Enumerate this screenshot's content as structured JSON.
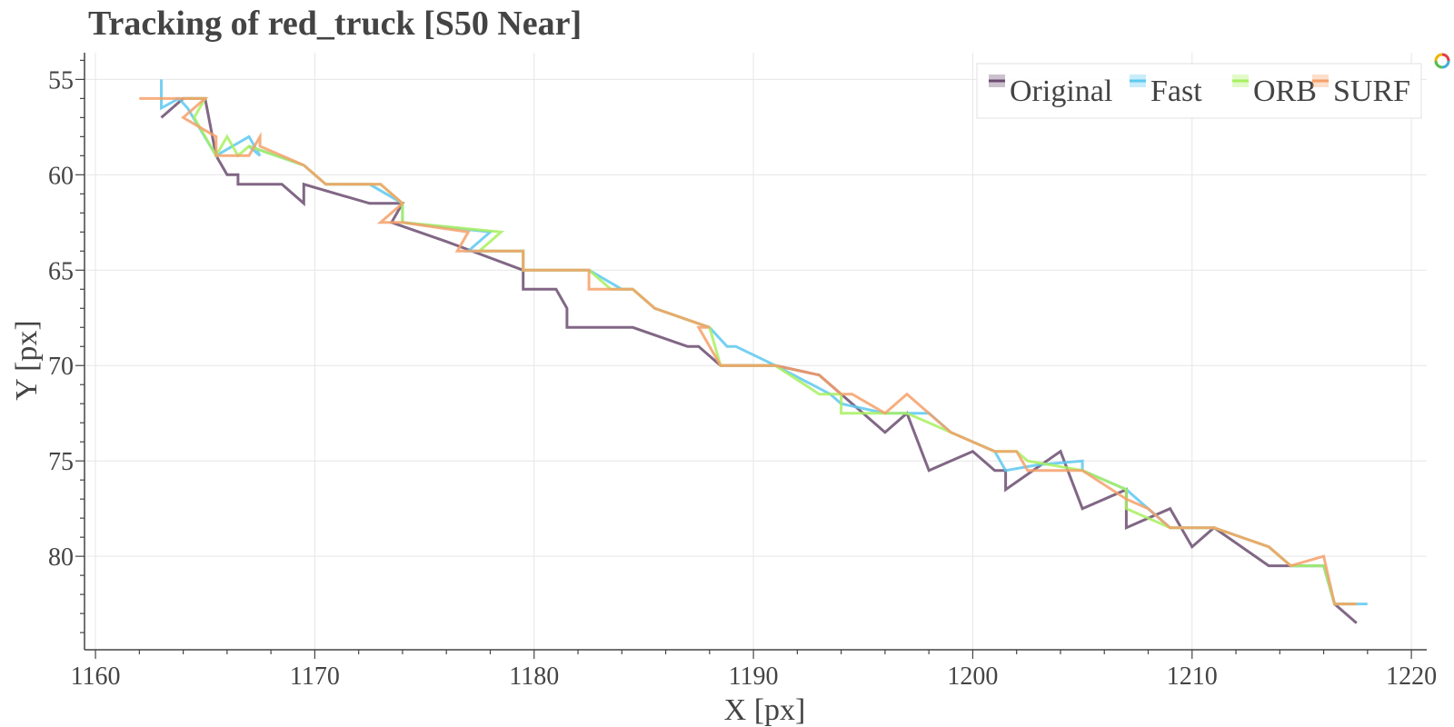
{
  "chart_data": {
    "type": "line",
    "title": "Tracking of red_truck [S50 Near]",
    "xlabel": "X [px]",
    "ylabel": "Y [px]",
    "xlim": [
      1159.5,
      1220.7
    ],
    "ylim": [
      84.9,
      53.6
    ],
    "y_inverted": true,
    "xticks": [
      1160,
      1170,
      1180,
      1190,
      1200,
      1210,
      1220
    ],
    "yticks": [
      55,
      60,
      65,
      70,
      75,
      80
    ],
    "grid": true,
    "legend_position": "top-right",
    "series": [
      {
        "name": "Original",
        "color": "#6b4c70",
        "points": [
          [
            1163,
            57
          ],
          [
            1164,
            56
          ],
          [
            1165,
            56
          ],
          [
            1165.5,
            59
          ],
          [
            1166,
            60
          ],
          [
            1166.5,
            60
          ],
          [
            1166.5,
            60.5
          ],
          [
            1168.5,
            60.5
          ],
          [
            1169.5,
            61.5
          ],
          [
            1169.5,
            60.5
          ],
          [
            1172.5,
            61.5
          ],
          [
            1174,
            61.5
          ],
          [
            1173.5,
            62.5
          ],
          [
            1176,
            63.5
          ],
          [
            1179.5,
            65
          ],
          [
            1179.5,
            66
          ],
          [
            1181,
            66
          ],
          [
            1181.5,
            67
          ],
          [
            1181.5,
            68
          ],
          [
            1184.5,
            68
          ],
          [
            1187,
            69
          ],
          [
            1187.5,
            69
          ],
          [
            1188.5,
            70
          ],
          [
            1191,
            70
          ],
          [
            1193,
            70.5
          ],
          [
            1194.5,
            72
          ],
          [
            1196,
            73.5
          ],
          [
            1197,
            72.5
          ],
          [
            1198,
            75.5
          ],
          [
            1200,
            74.5
          ],
          [
            1201,
            75.5
          ],
          [
            1201.5,
            75.5
          ],
          [
            1201.5,
            76.5
          ],
          [
            1204,
            74.5
          ],
          [
            1205,
            77.5
          ],
          [
            1207,
            76.5
          ],
          [
            1207,
            78.5
          ],
          [
            1209,
            77.5
          ],
          [
            1209.5,
            78.5
          ],
          [
            1210,
            79.5
          ],
          [
            1211,
            78.5
          ],
          [
            1213.5,
            80.5
          ],
          [
            1216,
            80.5
          ],
          [
            1216.5,
            82.5
          ],
          [
            1217.5,
            83.5
          ]
        ]
      },
      {
        "name": "Fast",
        "color": "#5ec8f0",
        "points": [
          [
            1163,
            55
          ],
          [
            1163,
            56.5
          ],
          [
            1163.8,
            56
          ],
          [
            1164.2,
            56.5
          ],
          [
            1165.5,
            59
          ],
          [
            1167,
            58
          ],
          [
            1167.5,
            59
          ],
          [
            1167,
            58.5
          ],
          [
            1169.5,
            59.5
          ],
          [
            1170.5,
            60.5
          ],
          [
            1172.5,
            60.5
          ],
          [
            1174,
            61.5
          ],
          [
            1174,
            62.5
          ],
          [
            1178,
            63
          ],
          [
            1177,
            64
          ],
          [
            1179.5,
            64
          ],
          [
            1179.5,
            65
          ],
          [
            1182.5,
            65
          ],
          [
            1184,
            66
          ],
          [
            1184.5,
            66
          ],
          [
            1185.5,
            67
          ],
          [
            1188,
            68
          ],
          [
            1188.8,
            69
          ],
          [
            1189.2,
            69
          ],
          [
            1191,
            70
          ],
          [
            1193.5,
            71.5
          ],
          [
            1194,
            72
          ],
          [
            1196,
            72.5
          ],
          [
            1198,
            72.5
          ],
          [
            1199,
            73.5
          ],
          [
            1201,
            74.5
          ],
          [
            1201.5,
            75.5
          ],
          [
            1203,
            75.2
          ],
          [
            1205,
            75
          ],
          [
            1205,
            75.5
          ],
          [
            1207,
            76.5
          ],
          [
            1208,
            77.5
          ],
          [
            1209,
            78.5
          ],
          [
            1211,
            78.5
          ],
          [
            1213.5,
            79.5
          ],
          [
            1214.5,
            80.5
          ],
          [
            1216,
            80.5
          ],
          [
            1216.5,
            82.5
          ],
          [
            1218,
            82.5
          ]
        ]
      },
      {
        "name": "ORB",
        "color": "#a8f060",
        "points": [
          [
            1164,
            56
          ],
          [
            1165,
            56
          ],
          [
            1164.5,
            57
          ],
          [
            1165.5,
            59
          ],
          [
            1166,
            58
          ],
          [
            1166.5,
            59
          ],
          [
            1167,
            58.5
          ],
          [
            1169.5,
            59.5
          ],
          [
            1170.5,
            60.5
          ],
          [
            1173,
            60.5
          ],
          [
            1174,
            61.5
          ],
          [
            1174,
            62.5
          ],
          [
            1178.5,
            63
          ],
          [
            1177.5,
            64
          ],
          [
            1179.5,
            64
          ],
          [
            1179.5,
            65
          ],
          [
            1182.5,
            65
          ],
          [
            1183.5,
            66
          ],
          [
            1184.5,
            66
          ],
          [
            1185.5,
            67
          ],
          [
            1188,
            68
          ],
          [
            1188.5,
            70
          ],
          [
            1191,
            70
          ],
          [
            1193,
            71.5
          ],
          [
            1194,
            71.5
          ],
          [
            1194,
            72.5
          ],
          [
            1196,
            72.5
          ],
          [
            1197,
            72.5
          ],
          [
            1199,
            73.5
          ],
          [
            1201,
            74.5
          ],
          [
            1202,
            74.5
          ],
          [
            1202.5,
            75
          ],
          [
            1205,
            75.5
          ],
          [
            1207,
            76.5
          ],
          [
            1207,
            77.5
          ],
          [
            1209,
            78.5
          ],
          [
            1211,
            78.5
          ],
          [
            1213.5,
            79.5
          ],
          [
            1214.5,
            80.5
          ],
          [
            1216,
            80.5
          ],
          [
            1216.5,
            82.5
          ],
          [
            1217.5,
            82.5
          ]
        ]
      },
      {
        "name": "SURF",
        "color": "#f5a06a",
        "points": [
          [
            1162,
            56
          ],
          [
            1165,
            56
          ],
          [
            1164,
            57
          ],
          [
            1165.5,
            58
          ],
          [
            1165.5,
            59
          ],
          [
            1167,
            59
          ],
          [
            1167.5,
            58
          ],
          [
            1167.5,
            58.5
          ],
          [
            1169.5,
            59.5
          ],
          [
            1170.5,
            60.5
          ],
          [
            1173,
            60.5
          ],
          [
            1174,
            61.5
          ],
          [
            1173,
            62.5
          ],
          [
            1174,
            62.5
          ],
          [
            1177,
            63
          ],
          [
            1176.5,
            64
          ],
          [
            1179.5,
            64
          ],
          [
            1179.5,
            65
          ],
          [
            1182.5,
            65
          ],
          [
            1182.5,
            66
          ],
          [
            1184.5,
            66
          ],
          [
            1185.5,
            67
          ],
          [
            1188,
            68
          ],
          [
            1187.5,
            68
          ],
          [
            1188.5,
            70
          ],
          [
            1191,
            70
          ],
          [
            1193,
            70.5
          ],
          [
            1194,
            71.5
          ],
          [
            1194.5,
            71.5
          ],
          [
            1196,
            72.5
          ],
          [
            1197,
            71.5
          ],
          [
            1199,
            73.5
          ],
          [
            1201,
            74.5
          ],
          [
            1202,
            74.5
          ],
          [
            1202.5,
            75.5
          ],
          [
            1205,
            75.5
          ],
          [
            1207,
            77
          ],
          [
            1208,
            77.5
          ],
          [
            1209,
            78.5
          ],
          [
            1211,
            78.5
          ],
          [
            1213.5,
            79.5
          ],
          [
            1214.5,
            80.5
          ],
          [
            1216,
            80
          ],
          [
            1216.5,
            82.5
          ],
          [
            1217.5,
            82.5
          ]
        ]
      }
    ]
  },
  "logo": {
    "icon": "colorful-logo-icon"
  }
}
